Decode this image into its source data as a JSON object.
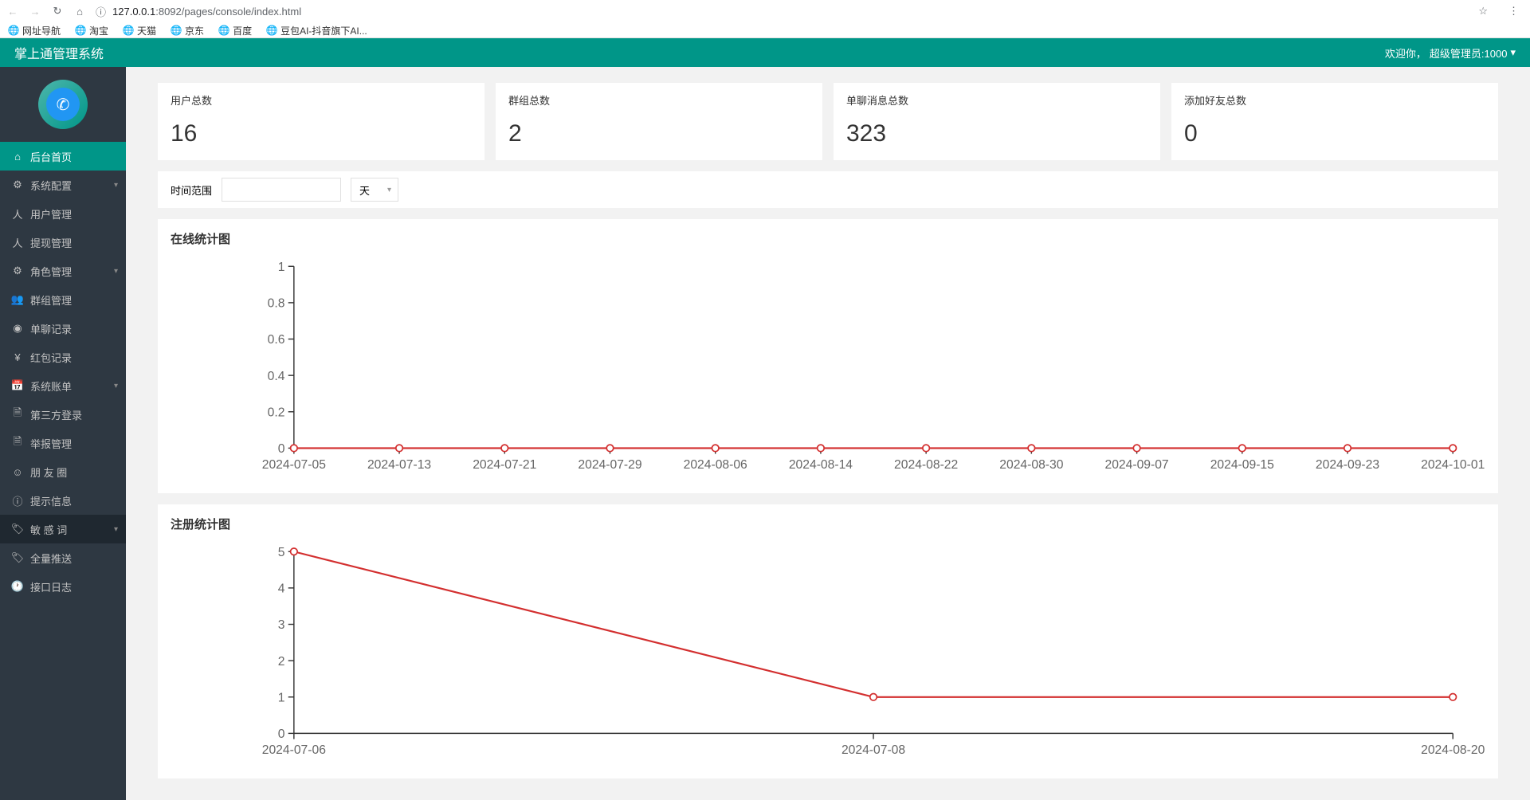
{
  "browser": {
    "url_host": "127.0.0.1",
    "url_port": ":8092",
    "url_path": "/pages/console/index.html",
    "bookmarks": [
      "网址导航",
      "淘宝",
      "天猫",
      "京东",
      "百度",
      "豆包AI-抖音旗下AI..."
    ]
  },
  "header": {
    "title": "掌上通管理系统",
    "welcome_prefix": "欢迎你，",
    "welcome_user": "超级管理员:1000"
  },
  "sidebar": {
    "items": [
      {
        "label": "后台首页",
        "icon": "⌂",
        "active": true
      },
      {
        "label": "系统配置",
        "icon": "⚙",
        "expandable": true
      },
      {
        "label": "用户管理",
        "icon": "人"
      },
      {
        "label": "提现管理",
        "icon": "人"
      },
      {
        "label": "角色管理",
        "icon": "⚙",
        "expandable": true
      },
      {
        "label": "群组管理",
        "icon": "👥"
      },
      {
        "label": "单聊记录",
        "icon": "◉"
      },
      {
        "label": "红包记录",
        "icon": "¥"
      },
      {
        "label": "系统账单",
        "icon": "📅",
        "expandable": true
      },
      {
        "label": "第三方登录",
        "icon": "🗎"
      },
      {
        "label": "举报管理",
        "icon": "🗎"
      },
      {
        "label": "朋 友 圈",
        "icon": "☺"
      },
      {
        "label": "提示信息",
        "icon": "ⓘ"
      },
      {
        "label": "敏 感 词",
        "icon": "🏷",
        "expandable": true,
        "highlighted": true
      },
      {
        "label": "全量推送",
        "icon": "🏷"
      },
      {
        "label": "接口日志",
        "icon": "🕐"
      }
    ]
  },
  "stats": [
    {
      "label": "用户总数",
      "value": "16"
    },
    {
      "label": "群组总数",
      "value": "2"
    },
    {
      "label": "单聊消息总数",
      "value": "323"
    },
    {
      "label": "添加好友总数",
      "value": "0"
    }
  ],
  "filter": {
    "range_label": "时间范围",
    "unit_label": "天"
  },
  "chart_online": {
    "title": "在线统计图",
    "type": "line",
    "line_color": "#d32f2f",
    "background_color": "#ffffff",
    "ylim": [
      0,
      1
    ],
    "ytick_step": 0.2,
    "yticks": [
      "0",
      "0.2",
      "0.4",
      "0.6",
      "0.8",
      "1"
    ],
    "xticks": [
      "2024-07-05",
      "2024-07-13",
      "2024-07-21",
      "2024-07-29",
      "2024-08-06",
      "2024-08-14",
      "2024-08-22",
      "2024-08-30",
      "2024-09-07",
      "2024-09-15",
      "2024-09-23",
      "2024-10-01"
    ],
    "n_points": 12,
    "values": [
      0,
      0,
      0,
      0,
      0,
      0,
      0,
      0,
      0,
      0,
      0,
      0
    ],
    "marker": "circle",
    "marker_size": 3
  },
  "chart_register": {
    "title": "注册统计图",
    "type": "line",
    "line_color": "#d32f2f",
    "background_color": "#ffffff",
    "ylim": [
      0,
      5
    ],
    "ytick_step": 1,
    "yticks": [
      "0",
      "1",
      "2",
      "3",
      "4",
      "5"
    ],
    "xticks": [
      "2024-07-06",
      "2024-07-08",
      "2024-08-20"
    ],
    "values": [
      5,
      1,
      1
    ],
    "marker": "circle",
    "marker_size": 3
  }
}
